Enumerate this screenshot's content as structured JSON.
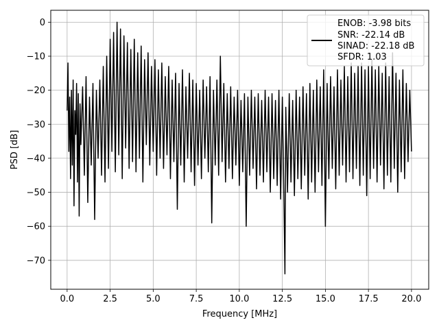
{
  "chart_data": {
    "type": "line",
    "title": "",
    "xlabel": "Frequency [MHz]",
    "ylabel": "PSD [dB]",
    "xlim": [
      -0.95,
      21.0
    ],
    "ylim": [
      -78.5,
      3.5
    ],
    "xticks": [
      0.0,
      2.5,
      5.0,
      7.5,
      10.0,
      12.5,
      15.0,
      17.5,
      20.0
    ],
    "xtick_labels": [
      "0.0",
      "2.5",
      "5.0",
      "7.5",
      "10.0",
      "12.5",
      "15.0",
      "17.5",
      "20.0"
    ],
    "yticks": [
      0,
      -10,
      -20,
      -30,
      -40,
      -50,
      -60,
      -70
    ],
    "ytick_labels": [
      "0",
      "−10",
      "−20",
      "−30",
      "−40",
      "−50",
      "−60",
      "−70"
    ],
    "grid": true,
    "legend_position": "top-right",
    "line_color": "#000000",
    "legend": {
      "lines": [
        "ENOB: -3.98 bits",
        "SNR: -22.14 dB",
        "SINAD: -22.18 dB",
        "SFDR: 1.03"
      ]
    },
    "series": [
      {
        "points": [
          [
            0.0,
            -26
          ],
          [
            0.05,
            -12
          ],
          [
            0.1,
            -38
          ],
          [
            0.15,
            -22
          ],
          [
            0.2,
            -46
          ],
          [
            0.25,
            -20
          ],
          [
            0.3,
            -42
          ],
          [
            0.35,
            -17
          ],
          [
            0.4,
            -54
          ],
          [
            0.45,
            -26
          ],
          [
            0.5,
            -33
          ],
          [
            0.55,
            -18
          ],
          [
            0.6,
            -47
          ],
          [
            0.65,
            -21
          ],
          [
            0.7,
            -57
          ],
          [
            0.75,
            -24
          ],
          [
            0.8,
            -36
          ],
          [
            0.9,
            -19
          ],
          [
            1.0,
            -45
          ],
          [
            1.1,
            -16
          ],
          [
            1.2,
            -53
          ],
          [
            1.3,
            -22
          ],
          [
            1.4,
            -42
          ],
          [
            1.5,
            -18
          ],
          [
            1.6,
            -58
          ],
          [
            1.7,
            -20
          ],
          [
            1.8,
            -40
          ],
          [
            1.9,
            -17
          ],
          [
            2.0,
            -45
          ],
          [
            2.1,
            -13
          ],
          [
            2.2,
            -47
          ],
          [
            2.3,
            -10
          ],
          [
            2.4,
            -43
          ],
          [
            2.5,
            -5
          ],
          [
            2.6,
            -38
          ],
          [
            2.7,
            -3
          ],
          [
            2.8,
            -44
          ],
          [
            2.9,
            0
          ],
          [
            3.0,
            -39
          ],
          [
            3.1,
            -2
          ],
          [
            3.2,
            -46
          ],
          [
            3.3,
            -4
          ],
          [
            3.4,
            -37
          ],
          [
            3.5,
            -6
          ],
          [
            3.6,
            -43
          ],
          [
            3.7,
            -8
          ],
          [
            3.8,
            -41
          ],
          [
            3.9,
            -5
          ],
          [
            4.0,
            -44
          ],
          [
            4.1,
            -9
          ],
          [
            4.2,
            -40
          ],
          [
            4.3,
            -7
          ],
          [
            4.4,
            -47
          ],
          [
            4.5,
            -11
          ],
          [
            4.6,
            -36
          ],
          [
            4.7,
            -9
          ],
          [
            4.8,
            -42
          ],
          [
            4.9,
            -13
          ],
          [
            5.0,
            -38
          ],
          [
            5.1,
            -11
          ],
          [
            5.2,
            -45
          ],
          [
            5.3,
            -14
          ],
          [
            5.4,
            -40
          ],
          [
            5.5,
            -12
          ],
          [
            5.6,
            -43
          ],
          [
            5.7,
            -16
          ],
          [
            5.8,
            -39
          ],
          [
            5.9,
            -13
          ],
          [
            6.0,
            -46
          ],
          [
            6.1,
            -17
          ],
          [
            6.2,
            -41
          ],
          [
            6.3,
            -15
          ],
          [
            6.4,
            -55
          ],
          [
            6.5,
            -18
          ],
          [
            6.6,
            -42
          ],
          [
            6.7,
            -14
          ],
          [
            6.8,
            -47
          ],
          [
            6.9,
            -19
          ],
          [
            7.0,
            -40
          ],
          [
            7.1,
            -15
          ],
          [
            7.2,
            -44
          ],
          [
            7.3,
            -17
          ],
          [
            7.4,
            -48
          ],
          [
            7.5,
            -18
          ],
          [
            7.6,
            -42
          ],
          [
            7.7,
            -20
          ],
          [
            7.8,
            -46
          ],
          [
            7.9,
            -17
          ],
          [
            8.0,
            -40
          ],
          [
            8.1,
            -19
          ],
          [
            8.2,
            -44
          ],
          [
            8.3,
            -16
          ],
          [
            8.4,
            -59
          ],
          [
            8.5,
            -20
          ],
          [
            8.6,
            -42
          ],
          [
            8.7,
            -17
          ],
          [
            8.8,
            -45
          ],
          [
            8.9,
            -10
          ],
          [
            9.0,
            -41
          ],
          [
            9.1,
            -18
          ],
          [
            9.2,
            -47
          ],
          [
            9.3,
            -21
          ],
          [
            9.4,
            -43
          ],
          [
            9.5,
            -19
          ],
          [
            9.6,
            -46
          ],
          [
            9.7,
            -22
          ],
          [
            9.8,
            -42
          ],
          [
            9.9,
            -20
          ],
          [
            10.0,
            -48
          ],
          [
            10.1,
            -23
          ],
          [
            10.2,
            -44
          ],
          [
            10.3,
            -21
          ],
          [
            10.4,
            -60
          ],
          [
            10.5,
            -22
          ],
          [
            10.6,
            -45
          ],
          [
            10.7,
            -20
          ],
          [
            10.8,
            -43
          ],
          [
            10.9,
            -22
          ],
          [
            11.0,
            -49
          ],
          [
            11.1,
            -21
          ],
          [
            11.2,
            -45
          ],
          [
            11.3,
            -23
          ],
          [
            11.4,
            -47
          ],
          [
            11.5,
            -20
          ],
          [
            11.6,
            -44
          ],
          [
            11.7,
            -22
          ],
          [
            11.8,
            -50
          ],
          [
            11.9,
            -21
          ],
          [
            12.0,
            -46
          ],
          [
            12.1,
            -23
          ],
          [
            12.2,
            -48
          ],
          [
            12.3,
            -20
          ],
          [
            12.4,
            -52
          ],
          [
            12.5,
            -22
          ],
          [
            12.6,
            -55
          ],
          [
            12.65,
            -74
          ],
          [
            12.7,
            -25
          ],
          [
            12.8,
            -50
          ],
          [
            12.9,
            -21
          ],
          [
            13.0,
            -47
          ],
          [
            13.1,
            -23
          ],
          [
            13.2,
            -51
          ],
          [
            13.3,
            -20
          ],
          [
            13.4,
            -46
          ],
          [
            13.5,
            -22
          ],
          [
            13.6,
            -49
          ],
          [
            13.7,
            -19
          ],
          [
            13.8,
            -45
          ],
          [
            13.9,
            -21
          ],
          [
            14.0,
            -52
          ],
          [
            14.1,
            -18
          ],
          [
            14.2,
            -47
          ],
          [
            14.3,
            -20
          ],
          [
            14.4,
            -50
          ],
          [
            14.5,
            -17
          ],
          [
            14.6,
            -44
          ],
          [
            14.7,
            -19
          ],
          [
            14.8,
            -48
          ],
          [
            14.9,
            -14
          ],
          [
            15.0,
            -60
          ],
          [
            15.1,
            -18
          ],
          [
            15.2,
            -46
          ],
          [
            15.3,
            -16
          ],
          [
            15.4,
            -43
          ],
          [
            15.5,
            -19
          ],
          [
            15.6,
            -49
          ],
          [
            15.7,
            -14
          ],
          [
            15.8,
            -45
          ],
          [
            15.9,
            -17
          ],
          [
            16.0,
            -42
          ],
          [
            16.1,
            -13
          ],
          [
            16.2,
            -47
          ],
          [
            16.3,
            -16
          ],
          [
            16.4,
            -44
          ],
          [
            16.5,
            -12
          ],
          [
            16.6,
            -46
          ],
          [
            16.7,
            -15
          ],
          [
            16.8,
            -43
          ],
          [
            16.9,
            -13
          ],
          [
            17.0,
            -48
          ],
          [
            17.1,
            -12
          ],
          [
            17.2,
            -45
          ],
          [
            17.3,
            -14
          ],
          [
            17.4,
            -51
          ],
          [
            17.5,
            -13
          ],
          [
            17.6,
            -46
          ],
          [
            17.7,
            -11
          ],
          [
            17.8,
            -43
          ],
          [
            17.9,
            -14
          ],
          [
            18.0,
            -47
          ],
          [
            18.1,
            -13
          ],
          [
            18.2,
            -42
          ],
          [
            18.3,
            -15
          ],
          [
            18.4,
            -49
          ],
          [
            18.5,
            -12
          ],
          [
            18.6,
            -45
          ],
          [
            18.7,
            -16
          ],
          [
            18.8,
            -47
          ],
          [
            18.9,
            -9
          ],
          [
            19.0,
            -43
          ],
          [
            19.1,
            -15
          ],
          [
            19.2,
            -50
          ],
          [
            19.3,
            -17
          ],
          [
            19.4,
            -44
          ],
          [
            19.5,
            -14
          ],
          [
            19.6,
            -46
          ],
          [
            19.7,
            -18
          ],
          [
            19.8,
            -41
          ],
          [
            19.9,
            -20
          ],
          [
            20.0,
            -38
          ]
        ]
      }
    ]
  }
}
